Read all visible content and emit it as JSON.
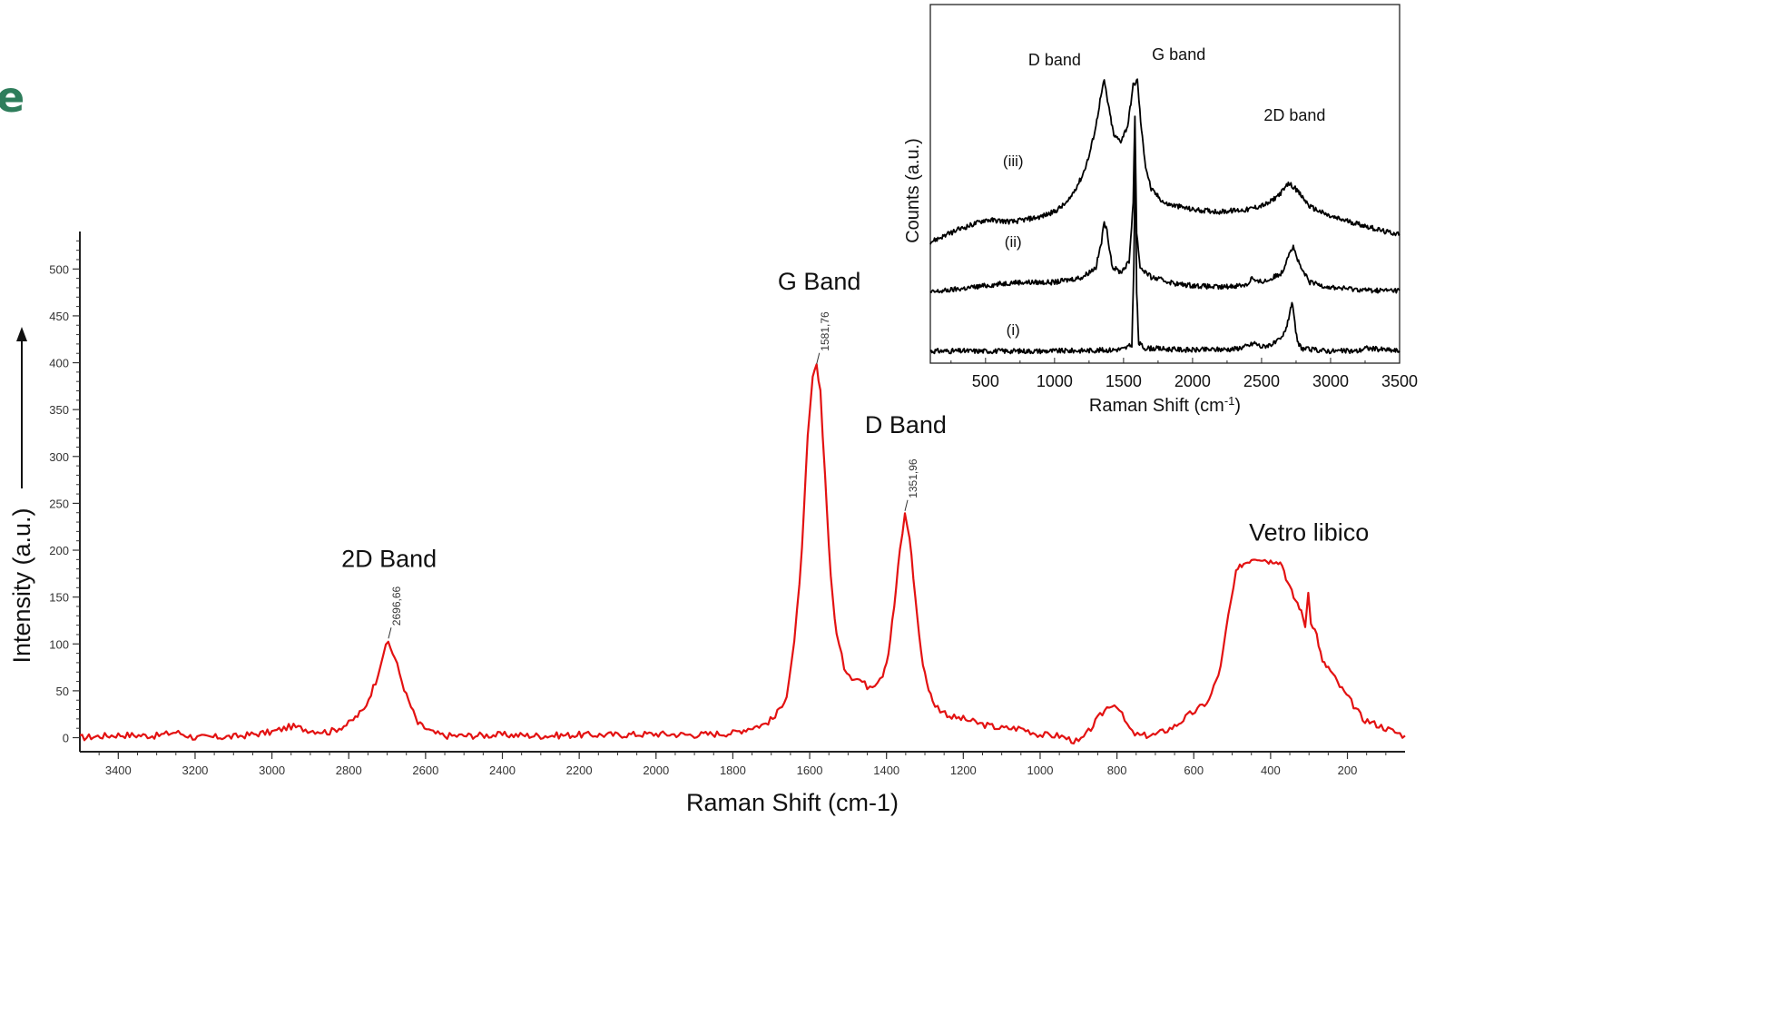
{
  "corner_text": "e",
  "colors": {
    "main_series": "#e31212",
    "inset_series": "#000000",
    "corner_text": "#2e7d5b"
  },
  "chart_data": [
    {
      "type": "line",
      "title": "",
      "xlabel": "Raman Shift (cm-1)",
      "ylabel": "Intensity (a.u.)",
      "xlim": [
        3500,
        50
      ],
      "ylim": [
        -15,
        540
      ],
      "x_reversed": true,
      "xticks": [
        3400,
        3200,
        3000,
        2800,
        2600,
        2400,
        2200,
        2000,
        1800,
        1600,
        1400,
        1200,
        1000,
        800,
        600,
        400,
        200
      ],
      "yticks": [
        0,
        50,
        100,
        150,
        200,
        250,
        300,
        350,
        400,
        450,
        500
      ],
      "grid": false,
      "series": [
        {
          "x": [
            3500,
            3400,
            3300,
            3250,
            3200,
            3100,
            3000,
            2950,
            2900,
            2850,
            2800,
            2760,
            2730,
            2710,
            2697,
            2680,
            2650,
            2620,
            2580,
            2550,
            2500,
            2400,
            2300,
            2200,
            2100,
            2000,
            1900,
            1800,
            1760,
            1720,
            1690,
            1660,
            1640,
            1620,
            1605,
            1592,
            1582,
            1572,
            1560,
            1545,
            1530,
            1510,
            1490,
            1470,
            1450,
            1430,
            1410,
            1395,
            1380,
            1365,
            1352,
            1340,
            1325,
            1310,
            1295,
            1280,
            1260,
            1230,
            1200,
            1150,
            1100,
            1050,
            1000,
            950,
            900,
            880,
            850,
            820,
            800,
            780,
            760,
            740,
            700,
            650,
            610,
            590,
            560,
            530,
            510,
            490,
            475,
            460,
            445,
            430,
            415,
            400,
            385,
            370,
            355,
            340,
            325,
            310,
            302,
            295,
            280,
            265,
            250,
            220,
            190,
            160,
            130,
            100,
            70,
            50
          ],
          "y": [
            0,
            3,
            2,
            6,
            0,
            1,
            6,
            12,
            8,
            6,
            15,
            30,
            60,
            90,
            102,
            85,
            45,
            15,
            5,
            2,
            2,
            3,
            2,
            3,
            3,
            4,
            3,
            5,
            10,
            14,
            22,
            45,
            100,
            200,
            320,
            385,
            395,
            370,
            280,
            170,
            110,
            75,
            65,
            62,
            55,
            58,
            68,
            90,
            140,
            200,
            238,
            215,
            150,
            90,
            60,
            38,
            30,
            22,
            20,
            14,
            10,
            10,
            3,
            2,
            -5,
            3,
            20,
            35,
            35,
            18,
            5,
            2,
            3,
            12,
            25,
            30,
            40,
            75,
            130,
            175,
            185,
            188,
            192,
            192,
            190,
            188,
            190,
            185,
            165,
            150,
            140,
            120,
            155,
            125,
            110,
            80,
            75,
            55,
            38,
            20,
            15,
            10,
            5,
            2
          ],
          "peak_labels": [
            {
              "x": 1581.76,
              "y": 395,
              "text": "1581,76"
            },
            {
              "x": 1351.96,
              "y": 238,
              "text": "1351,96"
            },
            {
              "x": 2696.66,
              "y": 102,
              "text": "2696,66"
            }
          ]
        }
      ],
      "annotations": [
        {
          "text": "G Band",
          "x": 1575,
          "y": 478
        },
        {
          "text": "D Band",
          "x": 1350,
          "y": 325
        },
        {
          "text": "2D Band",
          "x": 2695,
          "y": 182
        },
        {
          "text": "Vetro libico",
          "x": 300,
          "y": 210
        }
      ]
    },
    {
      "type": "line",
      "title": "",
      "xlabel": "Raman Shift (cm",
      "xlabel_superscript": "-1",
      "xlabel_suffix": ")",
      "ylabel": "Counts (a.u.)",
      "xlim": [
        100,
        3500
      ],
      "ylim": [
        0,
        3.55
      ],
      "xticks": [
        500,
        1000,
        1500,
        2000,
        2500,
        3000,
        3500
      ],
      "grid": false,
      "series": [
        {
          "name": "(i)",
          "x": [
            100,
            500,
            1000,
            1400,
            1500,
            1560,
            1575,
            1585,
            1595,
            1610,
            1650,
            1800,
            2000,
            2300,
            2400,
            2450,
            2500,
            2600,
            2650,
            2690,
            2710,
            2720,
            2735,
            2760,
            2800,
            3000,
            3200,
            3250,
            3500
          ],
          "y": [
            0.12,
            0.12,
            0.12,
            0.13,
            0.14,
            0.18,
            1.0,
            2.05,
            0.7,
            0.2,
            0.15,
            0.14,
            0.13,
            0.14,
            0.17,
            0.2,
            0.16,
            0.2,
            0.25,
            0.4,
            0.55,
            0.6,
            0.45,
            0.2,
            0.14,
            0.12,
            0.12,
            0.15,
            0.12
          ]
        },
        {
          "name": "(ii)",
          "x": [
            100,
            400,
            700,
            1000,
            1200,
            1300,
            1340,
            1360,
            1380,
            1420,
            1480,
            1540,
            1570,
            1582,
            1595,
            1620,
            1700,
            1900,
            2200,
            2400,
            2430,
            2460,
            2550,
            2650,
            2700,
            2730,
            2780,
            2850,
            3000,
            3300,
            3500
          ],
          "y": [
            0.7,
            0.75,
            0.8,
            0.8,
            0.85,
            0.95,
            1.2,
            1.4,
            1.3,
            0.95,
            0.9,
            1.0,
            1.6,
            2.45,
            1.3,
            0.95,
            0.85,
            0.78,
            0.75,
            0.78,
            0.85,
            0.8,
            0.82,
            0.9,
            1.1,
            1.15,
            0.95,
            0.8,
            0.75,
            0.72,
            0.72
          ]
        },
        {
          "name": "(iii)",
          "x": [
            100,
            300,
            500,
            700,
            900,
            1000,
            1100,
            1200,
            1250,
            1300,
            1330,
            1360,
            1390,
            1430,
            1480,
            1530,
            1570,
            1600,
            1630,
            1660,
            1700,
            1800,
            2000,
            2200,
            2400,
            2550,
            2650,
            2700,
            2750,
            2850,
            3000,
            3200,
            3400,
            3500
          ],
          "y": [
            1.2,
            1.32,
            1.42,
            1.4,
            1.45,
            1.5,
            1.6,
            1.85,
            2.05,
            2.35,
            2.6,
            2.8,
            2.55,
            2.25,
            2.2,
            2.35,
            2.75,
            2.8,
            2.3,
            1.95,
            1.72,
            1.58,
            1.52,
            1.5,
            1.52,
            1.58,
            1.7,
            1.78,
            1.72,
            1.55,
            1.45,
            1.38,
            1.3,
            1.28
          ]
        }
      ],
      "annotations": [
        {
          "text": "D band",
          "x": 1000,
          "y": 2.95
        },
        {
          "text": "G band",
          "x": 1900,
          "y": 3.0
        },
        {
          "text": "2D band",
          "x": 2740,
          "y": 2.4
        }
      ]
    }
  ]
}
